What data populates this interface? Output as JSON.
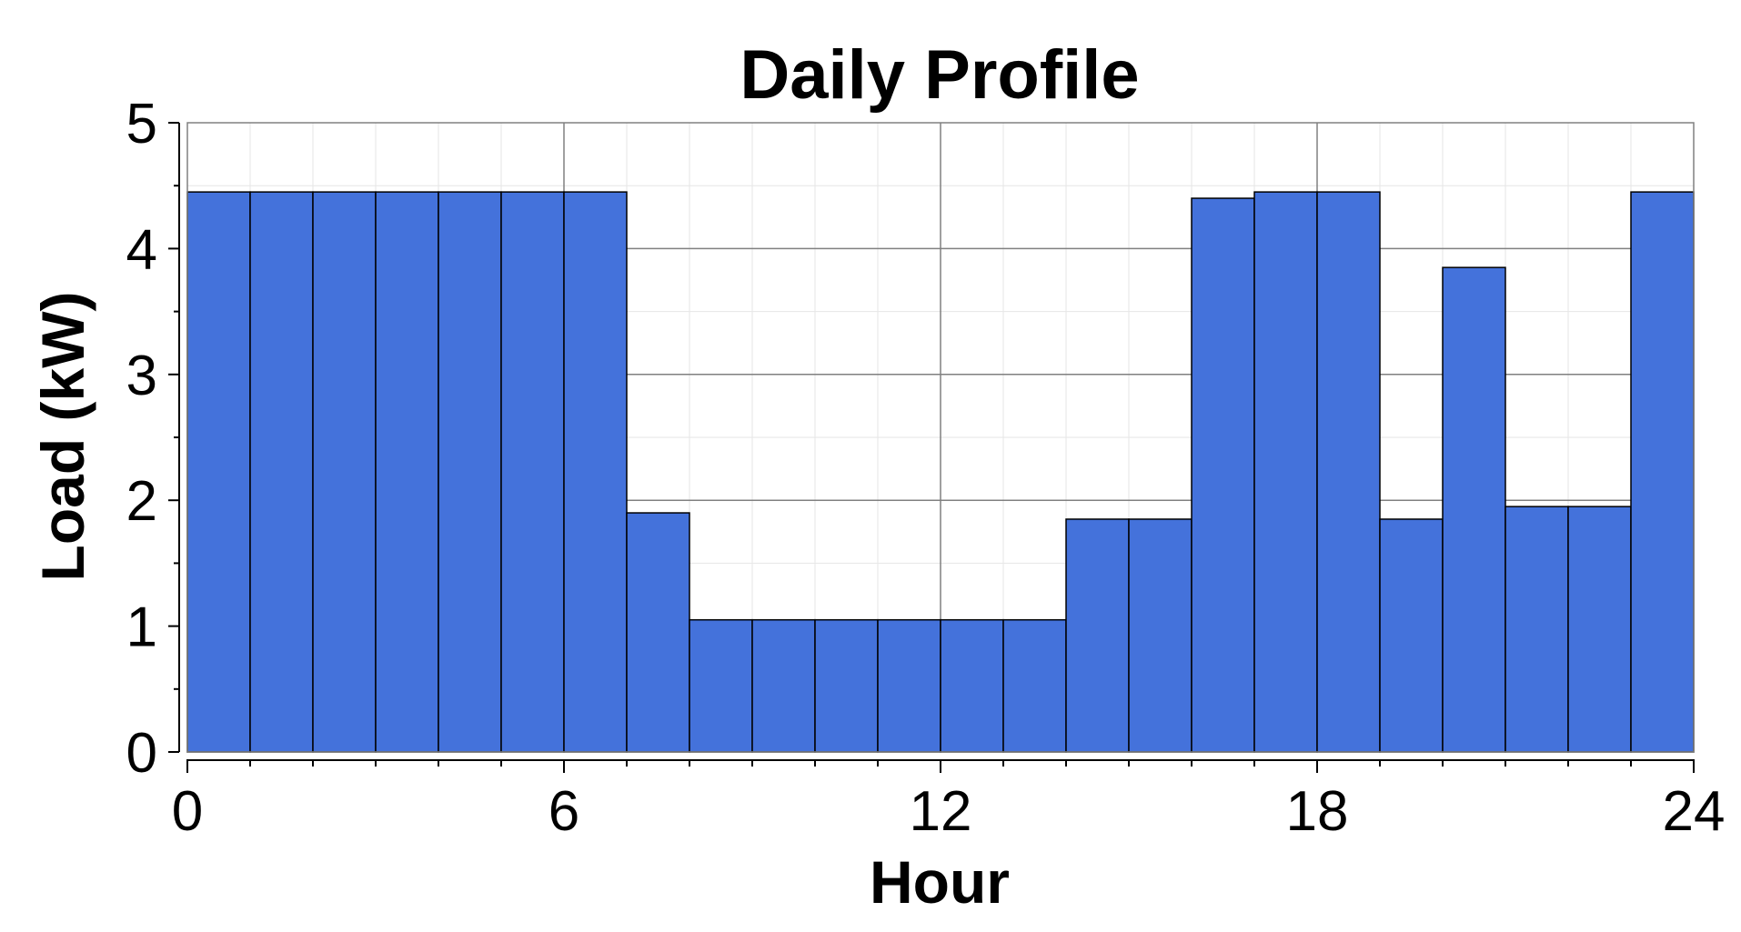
{
  "chart_data": {
    "type": "bar",
    "title": "Daily Profile",
    "xlabel": "Hour",
    "ylabel": "Load (kW)",
    "xlim": [
      0,
      24
    ],
    "ylim": [
      0,
      5
    ],
    "x_ticks": [
      "0",
      "6",
      "12",
      "18",
      "24"
    ],
    "y_ticks": [
      "0",
      "1",
      "2",
      "3",
      "4",
      "5"
    ],
    "categories": [
      "0",
      "1",
      "2",
      "3",
      "4",
      "5",
      "6",
      "7",
      "8",
      "9",
      "10",
      "11",
      "12",
      "13",
      "14",
      "15",
      "16",
      "17",
      "18",
      "19",
      "20",
      "21",
      "22",
      "23"
    ],
    "values": [
      4.45,
      4.45,
      4.45,
      4.45,
      4.45,
      4.45,
      4.45,
      1.9,
      1.05,
      1.05,
      1.05,
      1.05,
      1.05,
      1.05,
      1.85,
      1.85,
      4.4,
      4.45,
      4.45,
      1.85,
      3.85,
      1.95,
      1.95,
      4.45
    ],
    "grid": true,
    "legend": "none",
    "colors": {
      "bar_fill": "#4472db",
      "bar_stroke": "#000000",
      "major_grid": "#808080",
      "minor_grid": "#e6e6e6"
    }
  }
}
